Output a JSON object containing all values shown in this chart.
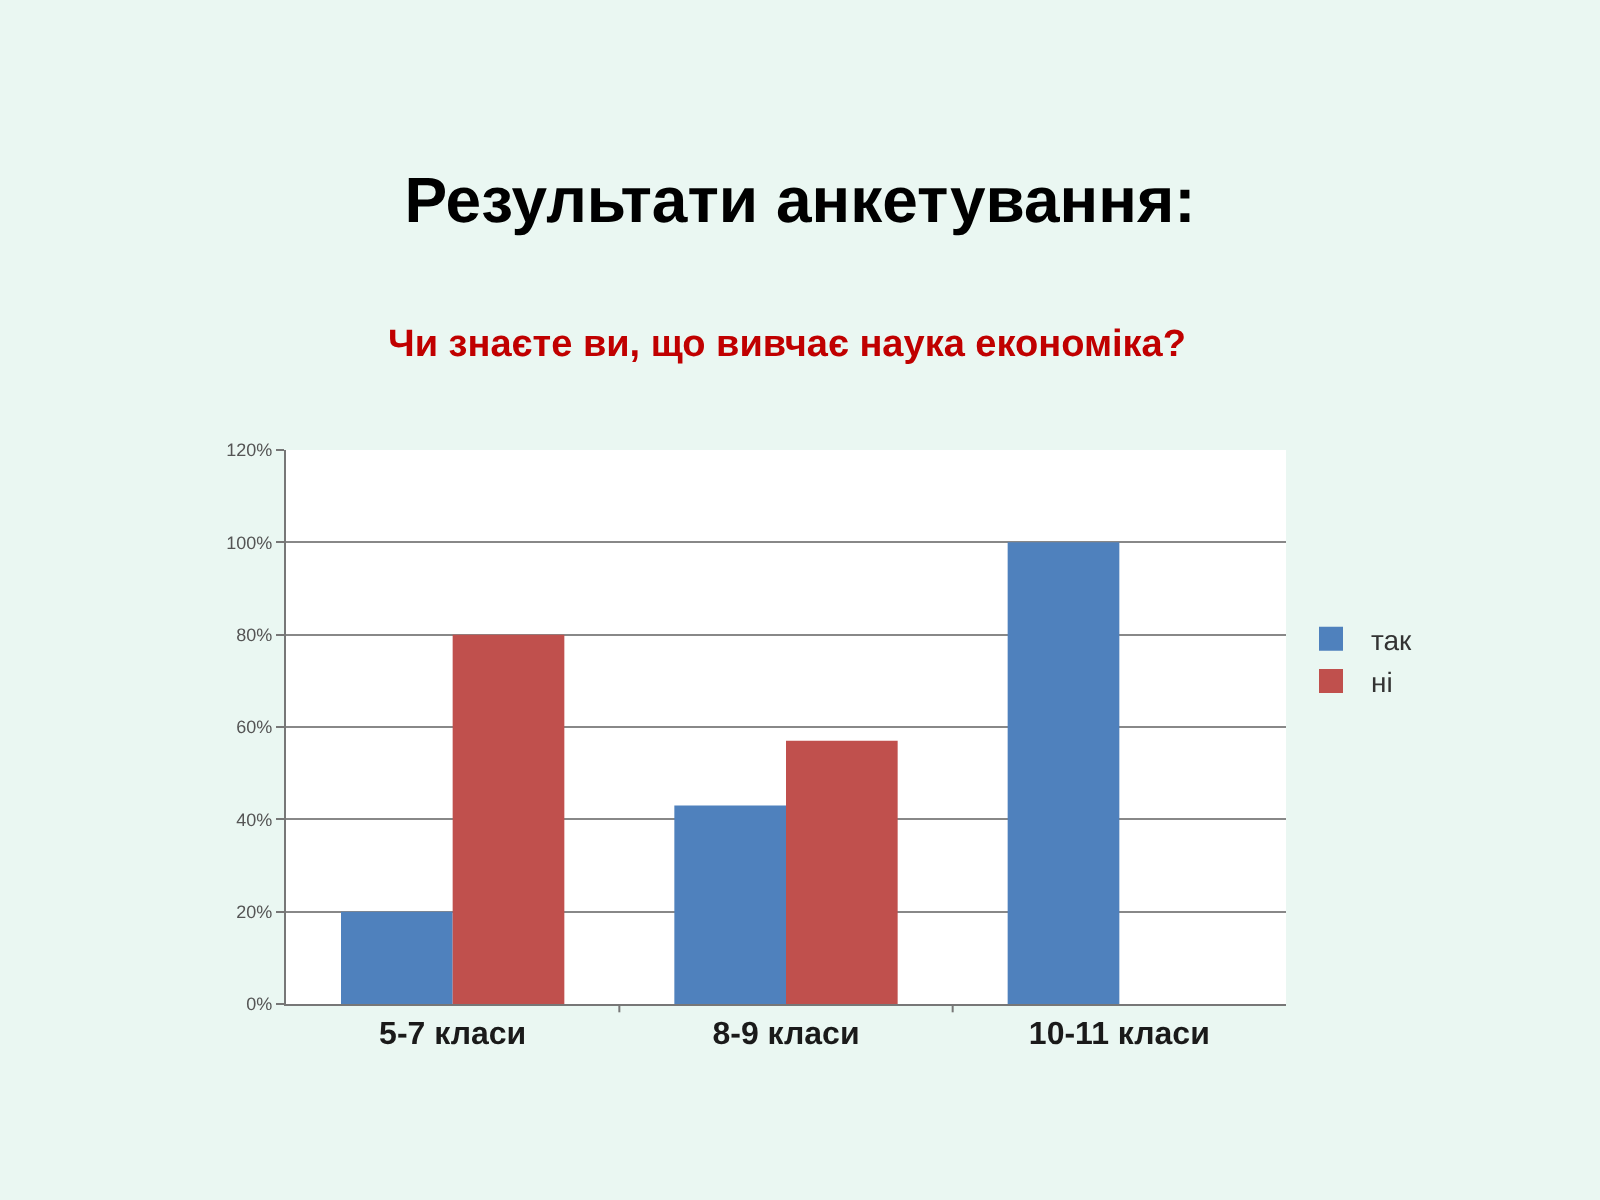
{
  "chart_data": {
    "type": "bar",
    "title": "Результати анкетування:",
    "subtitle": "Чи знаєте ви, що вивчає наука економіка?",
    "categories": [
      "5-7 класи",
      "8-9 класи",
      "10-11 класи"
    ],
    "series": [
      {
        "name": "так",
        "color": "#4f81bd",
        "values": [
          20,
          43,
          100
        ]
      },
      {
        "name": "ні",
        "color": "#c0504d",
        "values": [
          80,
          57,
          0
        ]
      }
    ],
    "ylim": [
      0,
      120
    ],
    "yticks": [
      {
        "value": 0,
        "label": "0%"
      },
      {
        "value": 20,
        "label": "20%"
      },
      {
        "value": 40,
        "label": "40%"
      },
      {
        "value": 60,
        "label": "60%"
      },
      {
        "value": 80,
        "label": "80%"
      },
      {
        "value": 100,
        "label": "100%"
      },
      {
        "value": 120,
        "label": "120%"
      }
    ],
    "grid": "y",
    "legend": "right"
  }
}
